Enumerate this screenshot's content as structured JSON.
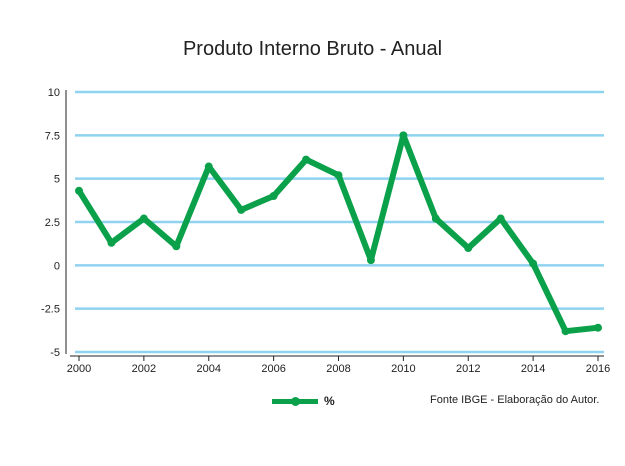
{
  "chart_data": {
    "type": "line",
    "title": "Produto Interno Bruto - Anual",
    "xlabel": "",
    "ylabel": "",
    "x": [
      2000,
      2001,
      2002,
      2003,
      2004,
      2005,
      2006,
      2007,
      2008,
      2009,
      2010,
      2011,
      2012,
      2013,
      2014,
      2015,
      2016
    ],
    "series": [
      {
        "name": "%",
        "values": [
          4.3,
          1.3,
          2.7,
          1.1,
          5.7,
          3.2,
          4.0,
          6.1,
          5.2,
          0.3,
          7.5,
          2.7,
          1.0,
          2.7,
          0.1,
          -3.8,
          -3.6
        ]
      }
    ],
    "xticks": [
      "2000",
      "2002",
      "2004",
      "2006",
      "2008",
      "2010",
      "2012",
      "2014",
      "2016"
    ],
    "yticks": [
      "10",
      "7.5",
      "5",
      "2.5",
      "0",
      "-2.5",
      "-5"
    ],
    "ylim": [
      -5,
      10
    ],
    "xlim": [
      2000,
      2016
    ],
    "grid": true,
    "legend_position": "bottom",
    "colors": {
      "line": "#0aa14a",
      "grid": "#8fd3f0"
    }
  },
  "legend": {
    "label": "%"
  },
  "source": "Fonte IBGE - Elaboração do Autor."
}
